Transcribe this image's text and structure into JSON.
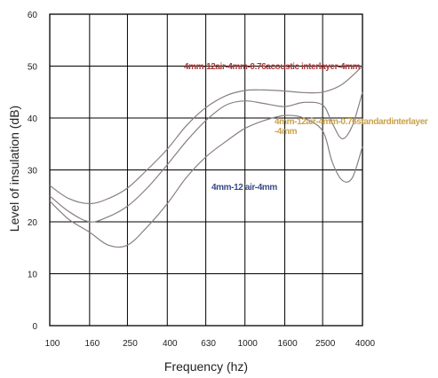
{
  "chart_data": {
    "type": "line",
    "xlabel": "Frequency (hz)",
    "ylabel": "Level of insulation (dB)",
    "x_categories": [
      "100",
      "160",
      "250",
      "400",
      "630",
      "1000",
      "1600",
      "2500",
      "4000"
    ],
    "yticks": [
      "0",
      "10",
      "20",
      "30",
      "40",
      "50",
      "60"
    ],
    "ylim": [
      0,
      60
    ],
    "grid": true,
    "line_color": "#8a7f7f",
    "series": [
      {
        "name": "4mm-12air-4mm-0.76acoustic interlayer-4mm",
        "x": [
          100,
          125,
          160,
          200,
          250,
          315,
          400,
          500,
          630,
          800,
          1000,
          1250,
          1600,
          2000,
          2500,
          3150,
          4000
        ],
        "y": [
          27,
          24.5,
          23.5,
          24.5,
          26.5,
          30,
          34,
          38.5,
          42,
          44.3,
          45.3,
          45.4,
          45.2,
          44.9,
          45,
          46.5,
          50
        ]
      },
      {
        "name": "4mm-12air-4mm-0.76standardinterlayer-4mm",
        "x": [
          100,
          125,
          160,
          200,
          250,
          315,
          400,
          500,
          630,
          800,
          1000,
          1250,
          1600,
          2000,
          2500,
          2800,
          3150,
          3550,
          4000
        ],
        "y": [
          25,
          22,
          20,
          21,
          23,
          26.5,
          31,
          35.5,
          39.5,
          42.5,
          43.3,
          42.8,
          42.2,
          43,
          42.5,
          39,
          36,
          38.5,
          45
        ]
      },
      {
        "name": "4mm-12 air-4mm",
        "x": [
          100,
          125,
          160,
          200,
          250,
          315,
          400,
          500,
          630,
          800,
          1000,
          1250,
          1600,
          2000,
          2500,
          2800,
          3150,
          3550,
          4000
        ],
        "y": [
          24,
          20.5,
          18,
          15.5,
          15.5,
          19,
          23.5,
          28.5,
          32.5,
          35.5,
          38,
          39.5,
          40.5,
          40,
          37.5,
          31.5,
          28,
          28.5,
          34.5
        ]
      }
    ],
    "annotations": [
      {
        "lines": [
          "4mm-12air-4mm-0.76acoustic interlayer-4mm"
        ],
        "color": "#a83a3a"
      },
      {
        "lines": [
          "4mm-12air-4mm-0.76standardinterlayer",
          "-4mm"
        ],
        "color": "#c9a24a"
      },
      {
        "lines": [
          "4mm-12 air-4mm"
        ],
        "color": "#3b4a86"
      }
    ]
  }
}
